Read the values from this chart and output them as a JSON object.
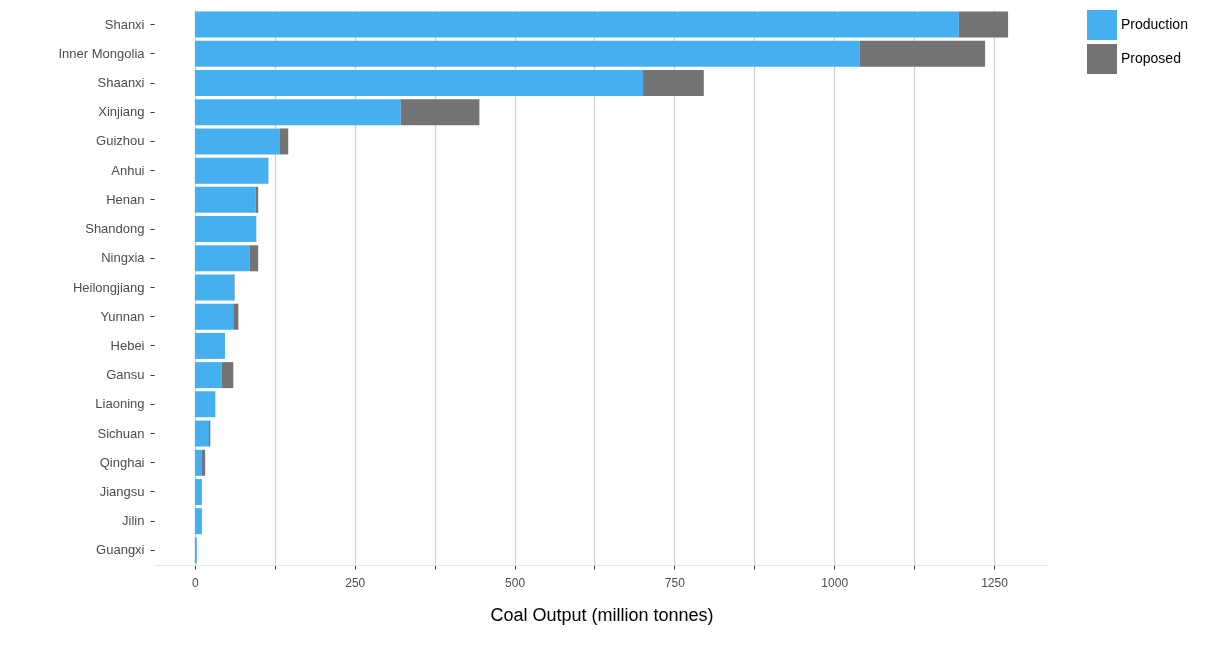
{
  "chart_data": {
    "type": "bar",
    "orientation": "horizontal",
    "stacked": true,
    "xlabel": "Coal Output (million tonnes)",
    "categories": [
      "Shanxi",
      "Inner Mongolia",
      "Shaanxi",
      "Xinjiang",
      "Guizhou",
      "Anhui",
      "Henan",
      "Shandong",
      "Ningxia",
      "Heilongjiang",
      "Yunnan",
      "Hebei",
      "Gansu",
      "Liaoning",
      "Sichuan",
      "Qinghai",
      "Jiangsu",
      "Jilin",
      "Guangxi"
    ],
    "series": [
      {
        "name": "Production",
        "color": "#45aff0",
        "values": [
          1195,
          1040,
          701,
          322,
          133,
          115,
          95,
          96,
          86,
          60,
          60,
          47,
          42,
          32,
          22,
          11,
          11,
          11,
          3
        ]
      },
      {
        "name": "Proposed",
        "color": "#737373",
        "values": [
          77,
          196,
          95,
          123,
          13,
          0,
          4,
          0,
          13,
          2,
          8,
          0,
          18,
          0,
          2,
          5,
          0,
          0,
          0
        ]
      }
    ],
    "xlim": [
      -64,
      1336
    ],
    "xticks": [
      0,
      {
        "value": 125,
        "label": null
      },
      250,
      {
        "value": 375,
        "label": null
      },
      500,
      {
        "value": 625,
        "label": null
      },
      750,
      {
        "value": 875,
        "label": null
      },
      1000,
      {
        "value": 1125,
        "label": null
      },
      1250
    ],
    "grid": "x",
    "legend": "right"
  }
}
